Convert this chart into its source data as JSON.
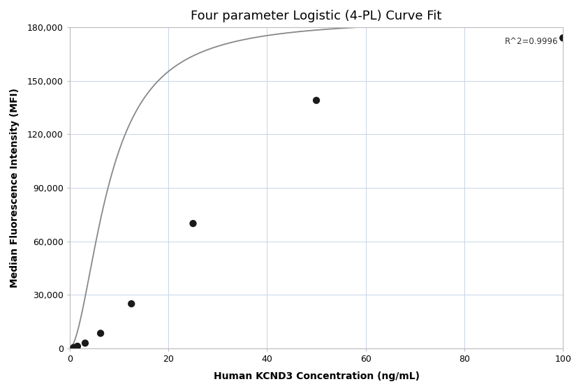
{
  "title": "Four parameter Logistic (4-PL) Curve Fit",
  "xlabel": "Human KCND3 Concentration (ng/mL)",
  "ylabel": "Median Fluorescence Intensity (MFI)",
  "r_squared_label": "R^2=0.9996",
  "scatter_x": [
    0.78,
    1.56,
    3.12,
    6.25,
    12.5,
    25.0,
    50.0,
    100.0
  ],
  "scatter_y": [
    474,
    1192,
    2956,
    8456,
    25000,
    70000,
    139000,
    174000
  ],
  "xlim": [
    0,
    100
  ],
  "ylim": [
    0,
    180000
  ],
  "yticks": [
    0,
    30000,
    60000,
    90000,
    120000,
    150000,
    180000
  ],
  "xticks": [
    0,
    20,
    40,
    60,
    80,
    100
  ],
  "scatter_color": "#1a1a1a",
  "scatter_size": 55,
  "line_color": "#888888",
  "line_width": 1.3,
  "grid_color": "#c8d4e8",
  "bg_color": "#ffffff",
  "title_fontsize": 13,
  "label_fontsize": 10,
  "tick_fontsize": 9,
  "annotation_fontsize": 8.5,
  "spine_color": "#bbbbbb"
}
